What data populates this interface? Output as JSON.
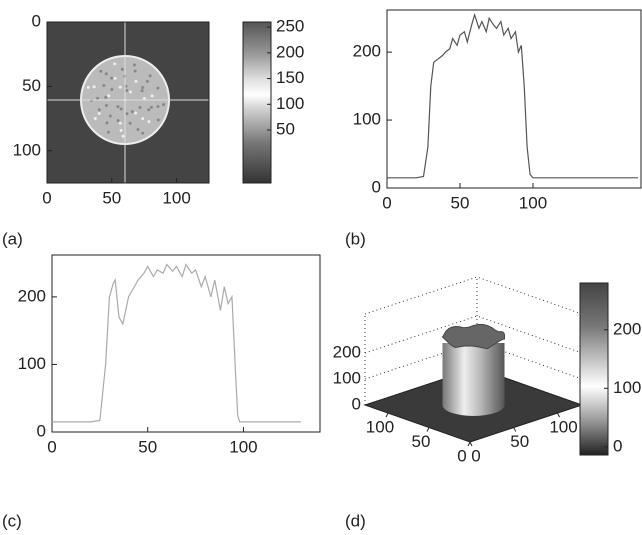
{
  "chart_data": [
    {
      "type": "image",
      "label": "(a)",
      "xlim": [
        0,
        125
      ],
      "ylim": [
        125,
        0
      ],
      "xticks": [
        0,
        50,
        100
      ],
      "yticks": [
        0,
        50,
        100
      ],
      "colorbar": {
        "lim": [
          -53,
          260
        ],
        "ticks": [
          50,
          100,
          150,
          200,
          250
        ]
      }
    },
    {
      "type": "line",
      "label": "(b)",
      "color": "#555555",
      "xlim": [
        0,
        174
      ],
      "ylim": [
        0,
        262
      ],
      "xticks": [
        0,
        50,
        100
      ],
      "yticks": [
        0,
        100,
        200
      ],
      "x": [
        0,
        5,
        10,
        15,
        20,
        25,
        28,
        30,
        32,
        35,
        38,
        40,
        43,
        45,
        48,
        50,
        53,
        55,
        58,
        60,
        63,
        65,
        68,
        70,
        73,
        75,
        78,
        80,
        83,
        85,
        88,
        90,
        92,
        94,
        96,
        98,
        100,
        105,
        110,
        120,
        130,
        140,
        150,
        160,
        172
      ],
      "values": [
        15,
        15,
        15,
        15,
        15,
        17,
        60,
        150,
        185,
        190,
        195,
        200,
        205,
        220,
        210,
        225,
        230,
        215,
        240,
        255,
        235,
        245,
        230,
        250,
        240,
        235,
        245,
        225,
        235,
        220,
        230,
        200,
        210,
        150,
        60,
        20,
        15,
        15,
        15,
        15,
        15,
        15,
        15,
        15,
        15
      ]
    },
    {
      "type": "line",
      "label": "(c)",
      "color": "#aaaaaa",
      "xlim": [
        0,
        140
      ],
      "ylim": [
        0,
        262
      ],
      "xticks": [
        0,
        50,
        100
      ],
      "yticks": [
        0,
        100,
        200
      ],
      "x": [
        0,
        5,
        10,
        15,
        20,
        25,
        28,
        30,
        32,
        33,
        35,
        37,
        40,
        43,
        45,
        48,
        50,
        53,
        55,
        58,
        60,
        63,
        65,
        68,
        70,
        73,
        75,
        78,
        80,
        83,
        85,
        88,
        90,
        92,
        94,
        95,
        96,
        97,
        98,
        100,
        110,
        120,
        130
      ],
      "values": [
        15,
        15,
        15,
        15,
        15,
        17,
        100,
        200,
        220,
        225,
        170,
        160,
        200,
        215,
        225,
        235,
        245,
        230,
        240,
        235,
        248,
        238,
        245,
        230,
        248,
        235,
        240,
        215,
        230,
        200,
        225,
        180,
        215,
        190,
        200,
        140,
        80,
        25,
        15,
        15,
        15,
        15,
        15
      ]
    },
    {
      "type": "surface",
      "label": "(d)",
      "xlim": [
        0,
        128
      ],
      "ylim": [
        0,
        128
      ],
      "zlim": [
        0,
        350
      ],
      "xticks": [
        0,
        50,
        100
      ],
      "yticks": [
        0,
        50,
        100
      ],
      "zticks": [
        0,
        100,
        200
      ],
      "colorbar": {
        "lim": [
          -14,
          280
        ],
        "ticks": [
          0,
          100,
          200
        ]
      }
    }
  ]
}
